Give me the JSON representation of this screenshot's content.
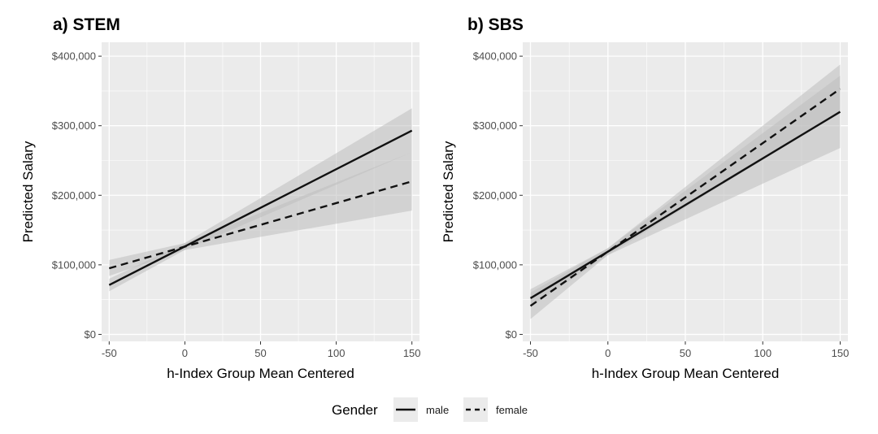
{
  "colors": {
    "panel_bg": "#ebebeb",
    "grid": "#ffffff",
    "band": "#bdbdbd",
    "line": "#111111",
    "text": "#4d4d4d"
  },
  "legend": {
    "title": "Gender",
    "items": [
      {
        "label": "male",
        "style": "solid"
      },
      {
        "label": "female",
        "style": "dashed"
      }
    ]
  },
  "chart_data": [
    {
      "type": "line",
      "title": "a) STEM",
      "xlabel": "h-Index Group Mean Centered",
      "ylabel": "Predicted Salary",
      "xlim": [
        -55,
        155
      ],
      "ylim": [
        -10000,
        420000
      ],
      "xticks": [
        -50,
        0,
        50,
        100,
        150
      ],
      "xtick_labels": [
        "-50",
        "0",
        "50",
        "100",
        "150"
      ],
      "yticks": [
        0,
        100000,
        200000,
        300000,
        400000
      ],
      "ytick_labels": [
        "$0",
        "$100,000",
        "$200,000",
        "$300,000",
        "$400,000"
      ],
      "series": [
        {
          "name": "male",
          "style": "solid",
          "x": [
            -50,
            150
          ],
          "y": [
            71000,
            293000
          ],
          "band_lower": [
            62000,
            262000
          ],
          "band_upper": [
            80000,
            325000
          ]
        },
        {
          "name": "female",
          "style": "dashed",
          "x": [
            -50,
            150
          ],
          "y": [
            95000,
            220000
          ],
          "band_lower": [
            84000,
            178000
          ],
          "band_upper": [
            107000,
            262000
          ]
        }
      ]
    },
    {
      "type": "line",
      "title": "b) SBS",
      "xlabel": "h-Index Group Mean Centered",
      "ylabel": "Predicted Salary",
      "xlim": [
        -55,
        155
      ],
      "ylim": [
        -10000,
        420000
      ],
      "xticks": [
        -50,
        0,
        50,
        100,
        150
      ],
      "xtick_labels": [
        "-50",
        "0",
        "50",
        "100",
        "150"
      ],
      "yticks": [
        0,
        100000,
        200000,
        300000,
        400000
      ],
      "ytick_labels": [
        "$0",
        "$100,000",
        "$200,000",
        "$300,000",
        "$400,000"
      ],
      "series": [
        {
          "name": "male",
          "style": "solid",
          "x": [
            -50,
            150
          ],
          "y": [
            52000,
            320000
          ],
          "band_lower": [
            40000,
            268000
          ],
          "band_upper": [
            65000,
            372000
          ]
        },
        {
          "name": "female",
          "style": "dashed",
          "x": [
            -50,
            150
          ],
          "y": [
            41000,
            353000
          ],
          "band_lower": [
            22000,
            320000
          ],
          "band_upper": [
            60000,
            388000
          ]
        }
      ]
    }
  ]
}
